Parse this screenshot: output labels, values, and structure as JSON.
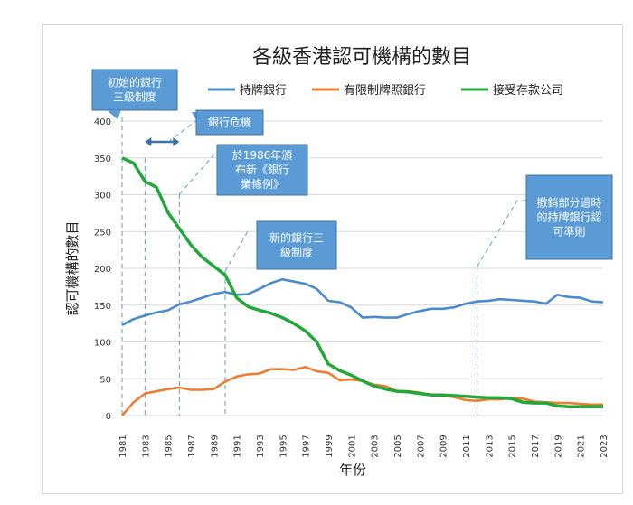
{
  "chart_data": {
    "type": "line",
    "title": "各級香港認可機構的數目",
    "xlabel": "年份",
    "ylabel": "認可機構的數目",
    "ylim": [
      0,
      400
    ],
    "yticks": [
      "0",
      "50",
      "100",
      "150",
      "200",
      "250",
      "300",
      "350",
      "400"
    ],
    "xlim": [
      1981,
      2023
    ],
    "xtick_labels": [
      "1981",
      "1983",
      "1985",
      "1987",
      "1989",
      "1991",
      "1993",
      "1995",
      "1997",
      "1999",
      "2001",
      "2003",
      "2005",
      "2007",
      "2009",
      "2011",
      "2013",
      "2015",
      "2017",
      "2019",
      "2021",
      "2023"
    ],
    "grid": true,
    "legend_position": "top",
    "x": [
      1981,
      1982,
      1983,
      1984,
      1985,
      1986,
      1987,
      1988,
      1989,
      1990,
      1991,
      1992,
      1993,
      1994,
      1995,
      1996,
      1997,
      1998,
      1999,
      2000,
      2001,
      2002,
      2003,
      2004,
      2005,
      2006,
      2007,
      2008,
      2009,
      2010,
      2011,
      2012,
      2013,
      2014,
      2015,
      2016,
      2017,
      2018,
      2019,
      2020,
      2021,
      2022,
      2023
    ],
    "series": [
      {
        "name": "持牌銀行",
        "color": "#4a8ccb",
        "values": [
          123,
          131,
          136,
          140,
          143,
          151,
          155,
          160,
          165,
          168,
          164,
          165,
          172,
          180,
          185,
          182,
          179,
          172,
          156,
          154,
          147,
          133,
          134,
          133,
          133,
          138,
          142,
          145,
          145,
          147,
          152,
          155,
          156,
          158,
          157,
          156,
          155,
          152,
          164,
          161,
          160,
          155,
          154
        ]
      },
      {
        "name": "有限制牌照銀行",
        "color": "#ed7d31",
        "values": [
          0,
          18,
          30,
          33,
          36,
          38,
          35,
          35,
          36,
          46,
          53,
          56,
          57,
          63,
          63,
          62,
          66,
          60,
          58,
          48,
          49,
          47,
          42,
          40,
          33,
          33,
          31,
          28,
          27,
          25,
          21,
          20,
          22,
          22,
          24,
          23,
          19,
          18,
          17,
          17,
          16,
          15,
          15
        ]
      },
      {
        "name": "接受存款公司",
        "color": "#20a83a",
        "values": [
          350,
          343,
          318,
          310,
          276,
          254,
          232,
          215,
          203,
          191,
          160,
          148,
          143,
          139,
          133,
          125,
          115,
          100,
          70,
          61,
          55,
          47,
          40,
          36,
          33,
          32,
          30,
          28,
          28,
          27,
          26,
          25,
          24,
          24,
          23,
          18,
          17,
          17,
          13,
          12,
          12,
          12,
          12
        ]
      }
    ],
    "annotations": [
      {
        "text": [
          "初始的銀行",
          "三級制度"
        ],
        "year": 1981
      },
      {
        "text": [
          "銀行危機"
        ],
        "years": [
          1983,
          1986
        ]
      },
      {
        "text": [
          "於1986年頒",
          "布新《銀行",
          "業條例》"
        ],
        "year": 1986
      },
      {
        "text": [
          "新的銀行三",
          "級制度"
        ],
        "year": 1990
      },
      {
        "text": [
          "撤銷部分過時",
          "的持牌銀行認",
          "可準則"
        ],
        "year": 2012
      }
    ]
  }
}
